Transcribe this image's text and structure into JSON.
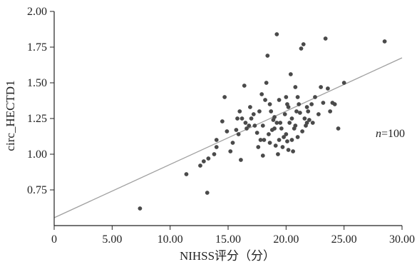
{
  "chart_data": {
    "type": "scatter",
    "title": "",
    "xlabel": "NIHSS评分（分）",
    "ylabel": "circ_HECTD1",
    "xlim": [
      0,
      30
    ],
    "ylim": [
      0.5,
      2.0
    ],
    "x_ticks": [
      "0",
      "5.00",
      "10.00",
      "15.00",
      "20.00",
      "25.00",
      "30.00"
    ],
    "y_ticks": [
      "0.75",
      "1.00",
      "1.25",
      "1.50",
      "1.75",
      "2.00"
    ],
    "x_tick_values": [
      0,
      5,
      10,
      15,
      20,
      25,
      30
    ],
    "y_tick_values": [
      0.75,
      1.0,
      1.25,
      1.5,
      1.75,
      2.0
    ],
    "grid": false,
    "annotation": {
      "italic": "n",
      "text": "=100"
    },
    "fit_line": {
      "x": [
        0,
        30
      ],
      "y": [
        0.555,
        1.675
      ],
      "color": "#a0a0a0"
    },
    "point_color": "#4a4a4a",
    "series": [
      {
        "points": [
          [
            7.4,
            0.62
          ],
          [
            11.4,
            0.86
          ],
          [
            12.6,
            0.92
          ],
          [
            13.2,
            0.73
          ],
          [
            12.9,
            0.95
          ],
          [
            13.3,
            0.97
          ],
          [
            13.8,
            1.0
          ],
          [
            14.0,
            1.05
          ],
          [
            14.0,
            1.1
          ],
          [
            14.5,
            1.23
          ],
          [
            14.9,
            1.16
          ],
          [
            14.7,
            1.4
          ],
          [
            15.2,
            1.02
          ],
          [
            15.4,
            1.08
          ],
          [
            15.7,
            1.17
          ],
          [
            15.8,
            1.25
          ],
          [
            16.2,
            1.25
          ],
          [
            16.5,
            1.22
          ],
          [
            16.4,
            1.48
          ],
          [
            16.0,
            1.3
          ],
          [
            16.1,
            0.96
          ],
          [
            16.8,
            1.2
          ],
          [
            17.0,
            1.25
          ],
          [
            17.2,
            1.28
          ],
          [
            17.5,
            1.15
          ],
          [
            17.7,
            1.3
          ],
          [
            17.9,
            1.42
          ],
          [
            18.0,
            1.2
          ],
          [
            18.1,
            1.1
          ],
          [
            18.3,
            1.5
          ],
          [
            18.4,
            1.69
          ],
          [
            18.5,
            1.14
          ],
          [
            18.6,
            1.08
          ],
          [
            18.8,
            1.17
          ],
          [
            19.0,
            1.26
          ],
          [
            19.1,
            1.06
          ],
          [
            19.2,
            1.84
          ],
          [
            19.3,
            1.0
          ],
          [
            19.4,
            1.38
          ],
          [
            19.5,
            1.22
          ],
          [
            19.7,
            1.05
          ],
          [
            19.9,
            1.28
          ],
          [
            20.0,
            1.14
          ],
          [
            20.1,
            1.09
          ],
          [
            20.2,
            1.33
          ],
          [
            20.3,
            1.22
          ],
          [
            20.4,
            1.56
          ],
          [
            20.5,
            1.25
          ],
          [
            20.6,
            1.02
          ],
          [
            20.7,
            1.18
          ],
          [
            20.8,
            1.47
          ],
          [
            20.9,
            1.3
          ],
          [
            21.0,
            1.12
          ],
          [
            21.1,
            1.35
          ],
          [
            21.2,
            1.29
          ],
          [
            21.3,
            1.74
          ],
          [
            21.5,
            1.77
          ],
          [
            21.6,
            1.25
          ],
          [
            21.7,
            1.2
          ],
          [
            21.8,
            1.33
          ],
          [
            21.9,
            1.3
          ],
          [
            22.0,
            1.24
          ],
          [
            22.2,
            1.35
          ],
          [
            22.5,
            1.4
          ],
          [
            22.8,
            1.28
          ],
          [
            23.0,
            1.47
          ],
          [
            23.2,
            1.36
          ],
          [
            23.4,
            1.81
          ],
          [
            23.6,
            1.46
          ],
          [
            23.8,
            1.3
          ],
          [
            24.0,
            1.36
          ],
          [
            24.2,
            1.35
          ],
          [
            24.5,
            1.18
          ],
          [
            25.0,
            1.5
          ],
          [
            18.7,
            1.3
          ],
          [
            19.6,
            1.18
          ],
          [
            20.0,
            1.4
          ],
          [
            19.8,
            1.12
          ],
          [
            18.9,
            1.24
          ],
          [
            17.8,
            1.1
          ],
          [
            18.2,
            1.38
          ],
          [
            20.5,
            1.1
          ],
          [
            21.4,
            1.16
          ],
          [
            16.6,
            1.18
          ],
          [
            15.9,
            1.14
          ],
          [
            17.3,
            1.2
          ],
          [
            19.0,
            1.18
          ],
          [
            20.2,
            1.03
          ],
          [
            21.0,
            1.4
          ],
          [
            18.6,
            1.35
          ],
          [
            22.3,
            1.22
          ],
          [
            17.6,
            1.05
          ],
          [
            19.4,
            1.1
          ],
          [
            20.8,
            1.2
          ],
          [
            16.9,
            1.33
          ],
          [
            18.0,
            0.99
          ],
          [
            21.8,
            1.22
          ],
          [
            28.5,
            1.79
          ],
          [
            20.1,
            1.35
          ],
          [
            19.2,
            1.22
          ]
        ]
      }
    ]
  }
}
